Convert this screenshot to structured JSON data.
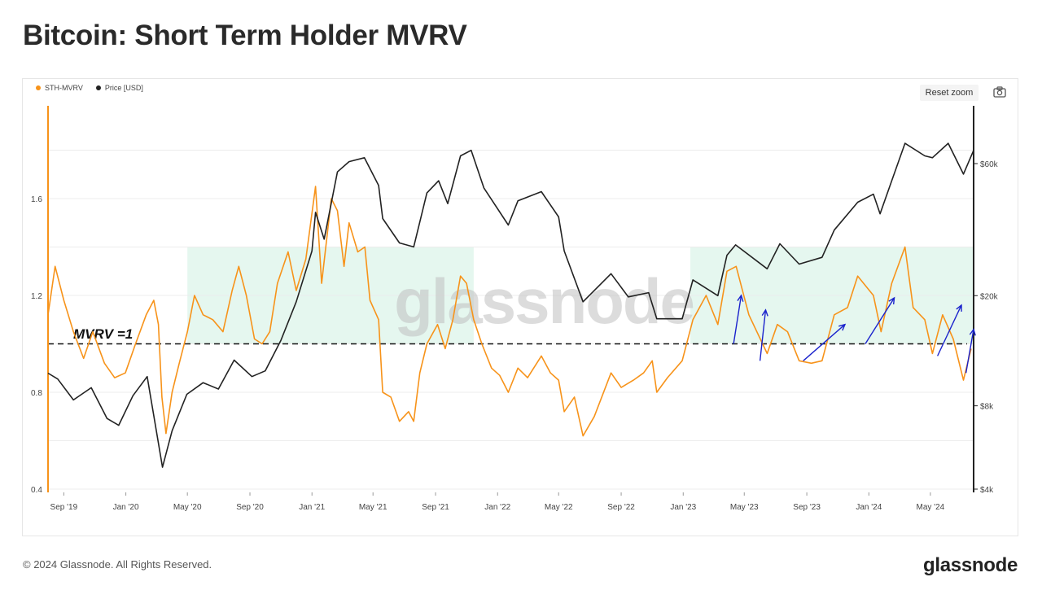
{
  "header": {
    "title": "Bitcoin: Short Term Holder MVRV"
  },
  "toolbar": {
    "reset_zoom_label": "Reset zoom",
    "camera": "camera-icon"
  },
  "footer": {
    "copyright": "© 2024 Glassnode. All Rights Reserved.",
    "logo_text": "glassnode"
  },
  "watermark": "glassnode",
  "colors": {
    "sth_mvrv": "#f7931a",
    "price": "#222222",
    "highlight": "#e5f7ef",
    "arrows": "#1a22cc"
  },
  "chart_data": {
    "type": "line",
    "legend": [
      "STH-MVRV",
      "Price [USD]"
    ],
    "legend_position": "top-left",
    "annotations": [
      "MVRV =1"
    ],
    "x_ticks": [
      "Sep '19",
      "Jan '20",
      "May '20",
      "Sep '20",
      "Jan '21",
      "May '21",
      "Sep '21",
      "Jan '22",
      "May '22",
      "Sep '22",
      "Jan '23",
      "May '23",
      "Sep '23",
      "Jan '24",
      "May '24"
    ],
    "x_range": [
      "2019-08-01",
      "2024-07-25"
    ],
    "y_left": {
      "label": "",
      "ticks": [
        "0.4",
        "0.8",
        "1.2",
        "1.6"
      ],
      "range": [
        0.4,
        1.6
      ]
    },
    "y_right": {
      "label": "",
      "scale": "log",
      "ticks": [
        "$4k",
        "$8k",
        "$20k",
        "$60k"
      ],
      "values": [
        4000,
        8000,
        20000,
        60000
      ]
    },
    "reference_line": {
      "value": 1.0,
      "style": "dashed"
    },
    "highlight_bands": [
      {
        "from": "2020-05-01",
        "to": "2021-11-15"
      },
      {
        "from": "2023-01-15",
        "to": "2024-07-25"
      }
    ],
    "series": [
      {
        "name": "STH-MVRV",
        "axis": "left",
        "points": [
          [
            "2019-08-01",
            1.12
          ],
          [
            "2019-08-15",
            1.32
          ],
          [
            "2019-09-01",
            1.18
          ],
          [
            "2019-09-20",
            1.05
          ],
          [
            "2019-10-10",
            0.94
          ],
          [
            "2019-10-28",
            1.05
          ],
          [
            "2019-11-20",
            0.92
          ],
          [
            "2019-12-10",
            0.86
          ],
          [
            "2019-12-31",
            0.88
          ],
          [
            "2020-01-20",
            1.0
          ],
          [
            "2020-02-10",
            1.12
          ],
          [
            "2020-02-25",
            1.18
          ],
          [
            "2020-03-05",
            1.08
          ],
          [
            "2020-03-12",
            0.78
          ],
          [
            "2020-03-20",
            0.63
          ],
          [
            "2020-04-01",
            0.8
          ],
          [
            "2020-04-15",
            0.92
          ],
          [
            "2020-05-01",
            1.05
          ],
          [
            "2020-05-15",
            1.2
          ],
          [
            "2020-06-01",
            1.12
          ],
          [
            "2020-06-20",
            1.1
          ],
          [
            "2020-07-10",
            1.05
          ],
          [
            "2020-07-28",
            1.22
          ],
          [
            "2020-08-10",
            1.32
          ],
          [
            "2020-08-25",
            1.2
          ],
          [
            "2020-09-10",
            1.02
          ],
          [
            "2020-09-25",
            1.0
          ],
          [
            "2020-10-10",
            1.05
          ],
          [
            "2020-10-25",
            1.25
          ],
          [
            "2020-11-15",
            1.38
          ],
          [
            "2020-12-01",
            1.22
          ],
          [
            "2020-12-20",
            1.35
          ],
          [
            "2021-01-08",
            1.65
          ],
          [
            "2021-01-20",
            1.25
          ],
          [
            "2021-02-08",
            1.6
          ],
          [
            "2021-02-20",
            1.55
          ],
          [
            "2021-03-05",
            1.32
          ],
          [
            "2021-03-15",
            1.5
          ],
          [
            "2021-04-01",
            1.38
          ],
          [
            "2021-04-15",
            1.4
          ],
          [
            "2021-04-25",
            1.18
          ],
          [
            "2021-05-12",
            1.1
          ],
          [
            "2021-05-20",
            0.8
          ],
          [
            "2021-06-05",
            0.78
          ],
          [
            "2021-06-22",
            0.68
          ],
          [
            "2021-07-10",
            0.72
          ],
          [
            "2021-07-20",
            0.68
          ],
          [
            "2021-08-01",
            0.88
          ],
          [
            "2021-08-15",
            1.0
          ],
          [
            "2021-09-05",
            1.08
          ],
          [
            "2021-09-20",
            0.98
          ],
          [
            "2021-10-05",
            1.1
          ],
          [
            "2021-10-20",
            1.28
          ],
          [
            "2021-11-01",
            1.25
          ],
          [
            "2021-11-15",
            1.1
          ],
          [
            "2021-12-01",
            1.0
          ],
          [
            "2021-12-20",
            0.9
          ],
          [
            "2022-01-05",
            0.87
          ],
          [
            "2022-01-22",
            0.8
          ],
          [
            "2022-02-10",
            0.9
          ],
          [
            "2022-03-01",
            0.86
          ],
          [
            "2022-03-28",
            0.95
          ],
          [
            "2022-04-15",
            0.88
          ],
          [
            "2022-05-01",
            0.85
          ],
          [
            "2022-05-12",
            0.72
          ],
          [
            "2022-06-01",
            0.78
          ],
          [
            "2022-06-18",
            0.62
          ],
          [
            "2022-07-10",
            0.7
          ],
          [
            "2022-08-12",
            0.88
          ],
          [
            "2022-09-01",
            0.82
          ],
          [
            "2022-09-25",
            0.85
          ],
          [
            "2022-10-15",
            0.88
          ],
          [
            "2022-11-01",
            0.93
          ],
          [
            "2022-11-10",
            0.8
          ],
          [
            "2022-12-01",
            0.86
          ],
          [
            "2022-12-30",
            0.93
          ],
          [
            "2023-01-20",
            1.1
          ],
          [
            "2023-02-15",
            1.2
          ],
          [
            "2023-03-10",
            1.08
          ],
          [
            "2023-03-28",
            1.3
          ],
          [
            "2023-04-15",
            1.32
          ],
          [
            "2023-05-10",
            1.12
          ],
          [
            "2023-06-15",
            0.96
          ],
          [
            "2023-07-05",
            1.08
          ],
          [
            "2023-07-25",
            1.05
          ],
          [
            "2023-08-17",
            0.93
          ],
          [
            "2023-09-10",
            0.92
          ],
          [
            "2023-10-01",
            0.93
          ],
          [
            "2023-10-25",
            1.12
          ],
          [
            "2023-11-20",
            1.15
          ],
          [
            "2023-12-10",
            1.28
          ],
          [
            "2024-01-10",
            1.2
          ],
          [
            "2024-01-25",
            1.05
          ],
          [
            "2024-02-15",
            1.25
          ],
          [
            "2024-03-12",
            1.4
          ],
          [
            "2024-03-28",
            1.15
          ],
          [
            "2024-04-20",
            1.1
          ],
          [
            "2024-05-05",
            0.96
          ],
          [
            "2024-05-25",
            1.12
          ],
          [
            "2024-06-15",
            1.02
          ],
          [
            "2024-07-05",
            0.85
          ],
          [
            "2024-07-20",
            0.98
          ]
        ]
      },
      {
        "name": "Price [USD]",
        "axis": "right",
        "points": [
          [
            "2019-08-01",
            10500
          ],
          [
            "2019-08-20",
            10000
          ],
          [
            "2019-09-20",
            8400
          ],
          [
            "2019-10-25",
            9300
          ],
          [
            "2019-11-25",
            7200
          ],
          [
            "2019-12-18",
            6800
          ],
          [
            "2020-01-15",
            8700
          ],
          [
            "2020-02-12",
            10200
          ],
          [
            "2020-03-13",
            4800
          ],
          [
            "2020-04-01",
            6500
          ],
          [
            "2020-04-30",
            8800
          ],
          [
            "2020-06-01",
            9700
          ],
          [
            "2020-07-01",
            9200
          ],
          [
            "2020-08-01",
            11700
          ],
          [
            "2020-09-05",
            10200
          ],
          [
            "2020-10-01",
            10700
          ],
          [
            "2020-11-01",
            13800
          ],
          [
            "2020-12-01",
            19000
          ],
          [
            "2021-01-01",
            29000
          ],
          [
            "2021-01-08",
            40000
          ],
          [
            "2021-01-25",
            32000
          ],
          [
            "2021-02-20",
            56000
          ],
          [
            "2021-03-15",
            61000
          ],
          [
            "2021-04-14",
            63000
          ],
          [
            "2021-05-12",
            50000
          ],
          [
            "2021-05-20",
            38000
          ],
          [
            "2021-06-22",
            31000
          ],
          [
            "2021-07-20",
            30000
          ],
          [
            "2021-08-15",
            47000
          ],
          [
            "2021-09-07",
            52000
          ],
          [
            "2021-09-25",
            43000
          ],
          [
            "2021-10-20",
            64000
          ],
          [
            "2021-11-10",
            67000
          ],
          [
            "2021-12-05",
            49000
          ],
          [
            "2022-01-22",
            36000
          ],
          [
            "2022-02-10",
            44000
          ],
          [
            "2022-03-28",
            47500
          ],
          [
            "2022-05-01",
            38500
          ],
          [
            "2022-05-12",
            29000
          ],
          [
            "2022-06-18",
            19000
          ],
          [
            "2022-08-12",
            24000
          ],
          [
            "2022-09-15",
            19800
          ],
          [
            "2022-10-25",
            20500
          ],
          [
            "2022-11-10",
            16500
          ],
          [
            "2022-12-30",
            16500
          ],
          [
            "2023-01-20",
            22800
          ],
          [
            "2023-03-10",
            20000
          ],
          [
            "2023-03-28",
            28000
          ],
          [
            "2023-04-14",
            30500
          ],
          [
            "2023-06-15",
            25000
          ],
          [
            "2023-07-10",
            30800
          ],
          [
            "2023-08-17",
            26000
          ],
          [
            "2023-10-01",
            27500
          ],
          [
            "2023-10-25",
            34500
          ],
          [
            "2023-12-10",
            43500
          ],
          [
            "2024-01-10",
            46500
          ],
          [
            "2024-01-23",
            39500
          ],
          [
            "2024-02-15",
            52000
          ],
          [
            "2024-03-12",
            71000
          ],
          [
            "2024-04-20",
            64000
          ],
          [
            "2024-05-05",
            63000
          ],
          [
            "2024-06-05",
            71000
          ],
          [
            "2024-07-05",
            55000
          ],
          [
            "2024-07-25",
            67000
          ]
        ]
      }
    ],
    "arrows": [
      {
        "from": [
          "2023-04-10",
          1.0
        ],
        "to": [
          "2023-04-25",
          1.2
        ]
      },
      {
        "from": [
          "2023-06-01",
          0.93
        ],
        "to": [
          "2023-06-12",
          1.14
        ]
      },
      {
        "from": [
          "2023-08-25",
          0.93
        ],
        "to": [
          "2023-11-15",
          1.08
        ]
      },
      {
        "from": [
          "2023-12-25",
          1.0
        ],
        "to": [
          "2024-02-20",
          1.19
        ]
      },
      {
        "from": [
          "2024-05-15",
          0.95
        ],
        "to": [
          "2024-07-01",
          1.16
        ]
      },
      {
        "from": [
          "2024-07-10",
          0.88
        ],
        "to": [
          "2024-07-25",
          1.06
        ]
      }
    ]
  }
}
